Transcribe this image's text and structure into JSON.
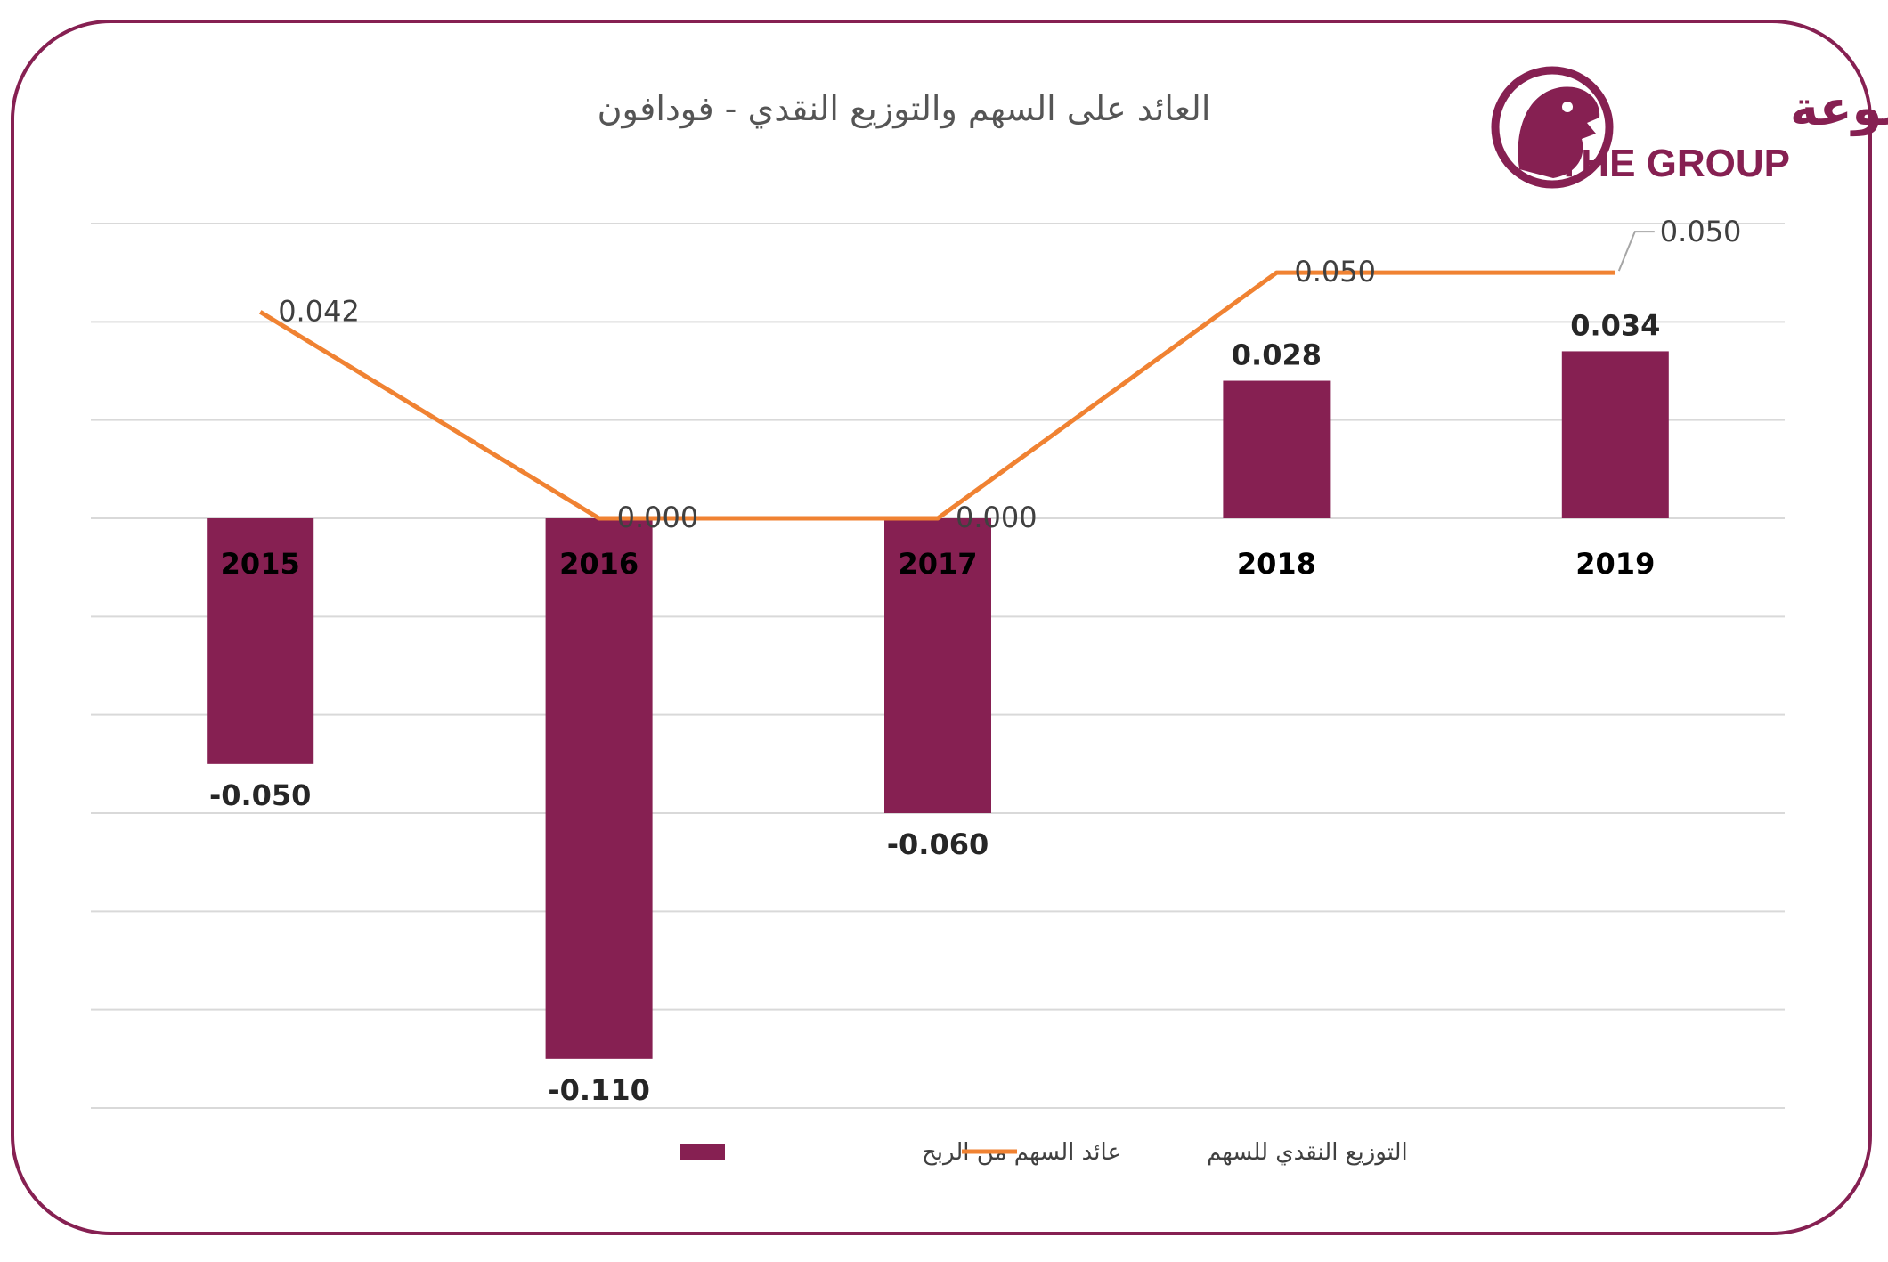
{
  "colors": {
    "bar": "#862052",
    "line": "#F08232",
    "grid": "#D9D9D9",
    "frame": "#862052"
  },
  "logo": {
    "arabic": "المجموعة",
    "english": "THE GROUP",
    "icon": "falcon-emblem-icon"
  },
  "chart_data": {
    "type": "bar",
    "title": "العائد على السهم والتوزيع النقدي - فودافون",
    "categories": [
      "2015",
      "2016",
      "2017",
      "2018",
      "2019"
    ],
    "series": [
      {
        "name": "عائد السهم من الربح",
        "type": "bar",
        "values": [
          -0.05,
          -0.11,
          -0.06,
          0.028,
          0.034
        ],
        "labels": [
          "-0.050",
          "-0.110",
          "-0.060",
          "0.028",
          "0.034"
        ]
      },
      {
        "name": "التوزيع النقدي للسهم",
        "type": "line",
        "values": [
          0.042,
          0.0,
          0.0,
          0.05,
          0.05
        ],
        "labels": [
          "0.042",
          "0.000",
          "0.000",
          "0.050",
          "0.050"
        ]
      }
    ],
    "ylim": [
      -0.12,
      0.06
    ],
    "grid": true,
    "legend": "bottom",
    "xlabel": "",
    "ylabel": ""
  }
}
